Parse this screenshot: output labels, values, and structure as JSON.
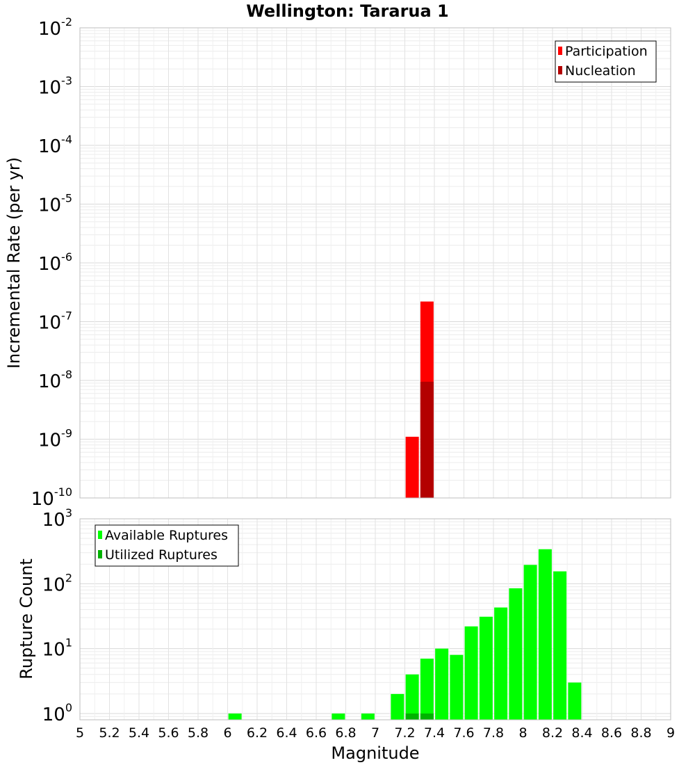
{
  "chart_data": {
    "type": "bar",
    "title": "Wellington: Tararua 1",
    "xlabel": "Magnitude",
    "xlim": [
      5,
      9
    ],
    "xticks": [
      "5",
      "5.2",
      "5.4",
      "5.6",
      "5.8",
      "6",
      "6.2",
      "6.4",
      "6.6",
      "6.8",
      "7",
      "7.2",
      "7.4",
      "7.6",
      "7.8",
      "8",
      "8.2",
      "8.4",
      "8.6",
      "8.8",
      "9"
    ],
    "panels": [
      {
        "ylabel": "Incremental Rate (per yr)",
        "yscale": "log",
        "ylim": [
          1e-10,
          0.01
        ],
        "yticks": [
          {
            "base": "10",
            "exp": "-10"
          },
          {
            "base": "10",
            "exp": "-9"
          },
          {
            "base": "10",
            "exp": "-8"
          },
          {
            "base": "10",
            "exp": "-7"
          },
          {
            "base": "10",
            "exp": "-6"
          },
          {
            "base": "10",
            "exp": "-5"
          },
          {
            "base": "10",
            "exp": "-4"
          },
          {
            "base": "10",
            "exp": "-3"
          },
          {
            "base": "10",
            "exp": "-2"
          }
        ],
        "legend": {
          "position": "top-right"
        },
        "series": [
          {
            "name": "Participation",
            "color": "#ff0000",
            "points": [
              {
                "x": 7.25,
                "y": 1.1e-09
              },
              {
                "x": 7.35,
                "y": 2.2e-07
              }
            ]
          },
          {
            "name": "Nucleation",
            "color": "#b30000",
            "points": [
              {
                "x": 7.35,
                "y": 9.5e-09
              }
            ]
          }
        ]
      },
      {
        "ylabel": "Rupture Count",
        "yscale": "log",
        "ylim": [
          0.8,
          1000
        ],
        "yticks": [
          {
            "base": "10",
            "exp": "0"
          },
          {
            "base": "10",
            "exp": "1"
          },
          {
            "base": "10",
            "exp": "2"
          },
          {
            "base": "10",
            "exp": "3"
          }
        ],
        "legend": {
          "position": "top-left"
        },
        "series": [
          {
            "name": "Available Ruptures",
            "color": "#00ff00",
            "points": [
              {
                "x": 6.05,
                "y": 1
              },
              {
                "x": 6.75,
                "y": 1
              },
              {
                "x": 6.95,
                "y": 1
              },
              {
                "x": 7.15,
                "y": 2
              },
              {
                "x": 7.25,
                "y": 4
              },
              {
                "x": 7.35,
                "y": 7
              },
              {
                "x": 7.45,
                "y": 10
              },
              {
                "x": 7.55,
                "y": 8
              },
              {
                "x": 7.65,
                "y": 22
              },
              {
                "x": 7.75,
                "y": 31
              },
              {
                "x": 7.85,
                "y": 43
              },
              {
                "x": 7.95,
                "y": 85
              },
              {
                "x": 8.05,
                "y": 195
              },
              {
                "x": 8.15,
                "y": 340
              },
              {
                "x": 8.25,
                "y": 155
              },
              {
                "x": 8.35,
                "y": 3
              }
            ]
          },
          {
            "name": "Utilized Ruptures",
            "color": "#00b300",
            "points": [
              {
                "x": 7.25,
                "y": 1
              },
              {
                "x": 7.35,
                "y": 1
              }
            ]
          }
        ]
      }
    ]
  }
}
